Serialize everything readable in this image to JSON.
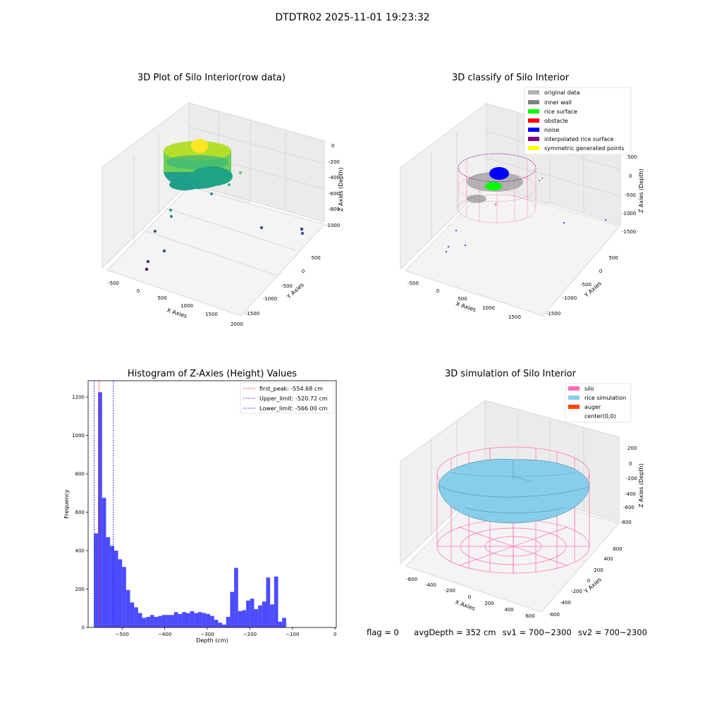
{
  "suptitle": "DTDTR02 2025-11-01 19:23:32",
  "panels": {
    "raw": {
      "title": "3D Plot of Silo Interior(row data)",
      "xlabel": "X Axies",
      "ylabel": "Y Axies",
      "zlabel": "Z Axies (Depth)",
      "xticks": [
        "-500",
        "0",
        "500",
        "1000",
        "1500",
        "2000"
      ],
      "yticks": [
        "500",
        "0",
        "-500",
        "-1000",
        "-1500"
      ],
      "zticks": [
        "0",
        "-200",
        "-400",
        "-600",
        "-800",
        "-1000"
      ]
    },
    "classify": {
      "title": "3D classify of Silo Interior",
      "xlabel": "X Axies",
      "ylabel": "Y Axies",
      "zlabel": "Z Axies (Depth)",
      "xticks": [
        "-500",
        "0",
        "500",
        "1000",
        "1500"
      ],
      "yticks": [
        "500",
        "0",
        "-500",
        "-1000",
        "-1500"
      ],
      "zticks": [
        "500",
        "0",
        "-500",
        "-1000",
        "-1500"
      ],
      "legend": [
        {
          "label": "original data",
          "color": "#b0b0b0"
        },
        {
          "label": "inner wall",
          "color": "#808080"
        },
        {
          "label": "rice surface",
          "color": "#00ff00"
        },
        {
          "label": "obstacle",
          "color": "#ff0000"
        },
        {
          "label": "noise",
          "color": "#0000ff"
        },
        {
          "label": "interpolated rice surface",
          "color": "#800080"
        },
        {
          "label": "symmetric generated points",
          "color": "#ffff00"
        }
      ]
    },
    "simulation": {
      "title": "3D simulation of Silo Interior",
      "xlabel": "X Axies",
      "ylabel": "Y Axies",
      "zlabel": "Z Axies (Depth)",
      "xticks": [
        "-600",
        "-400",
        "-200",
        "0",
        "200",
        "400",
        "600"
      ],
      "yticks": [
        "600",
        "400",
        "200",
        "0",
        "-200",
        "-400",
        "-600"
      ],
      "zticks": [
        "200",
        "0",
        "-200",
        "-400",
        "-600",
        "-800"
      ],
      "legend": [
        {
          "label": "silo",
          "color": "#ff69b4"
        },
        {
          "label": "rice simulation",
          "color": "#87ceeb"
        },
        {
          "label": "auger",
          "color": "#ff4500"
        },
        {
          "label": "center(0,0)",
          "color": ""
        }
      ]
    }
  },
  "chart_data": {
    "type": "bar",
    "title": "Histogram of Z-Axies (Height) Values",
    "xlabel": "Depth (cm)",
    "ylabel": "Frequency",
    "xlim": [
      -580,
      3
    ],
    "ylim": [
      0,
      1285
    ],
    "xticks": [
      -500,
      -400,
      -300,
      -200,
      -100,
      0
    ],
    "yticks": [
      0,
      200,
      400,
      600,
      800,
      1000,
      1200
    ],
    "bar_color": "#0000ff",
    "bin_start": -566,
    "bin_width": 9.4,
    "values": [
      490,
      1225,
      675,
      470,
      425,
      400,
      355,
      315,
      195,
      130,
      105,
      75,
      50,
      55,
      65,
      55,
      60,
      65,
      65,
      65,
      80,
      70,
      80,
      75,
      85,
      75,
      80,
      75,
      70,
      60,
      40,
      25,
      15,
      55,
      185,
      310,
      85,
      90,
      140,
      150,
      95,
      115,
      135,
      260,
      120,
      265,
      30,
      50
    ],
    "lines": [
      {
        "label": "first_peak: -554.68 cm",
        "x": -554.68,
        "color": "#ff0000"
      },
      {
        "label": "Upper_limit: -520.72 cm",
        "x": -520.72,
        "color": "#0000ff"
      },
      {
        "label": "Lower_limit: -566.00 cm",
        "x": -566.0,
        "color": "#0000ff"
      }
    ],
    "legend_position": "top-right"
  },
  "footer": {
    "flag": "flag = 0",
    "avg_depth": "avgDepth = 352 cm",
    "sv1": "sv1 = 700~2300",
    "sv2": "sv2 = 700~2300"
  }
}
